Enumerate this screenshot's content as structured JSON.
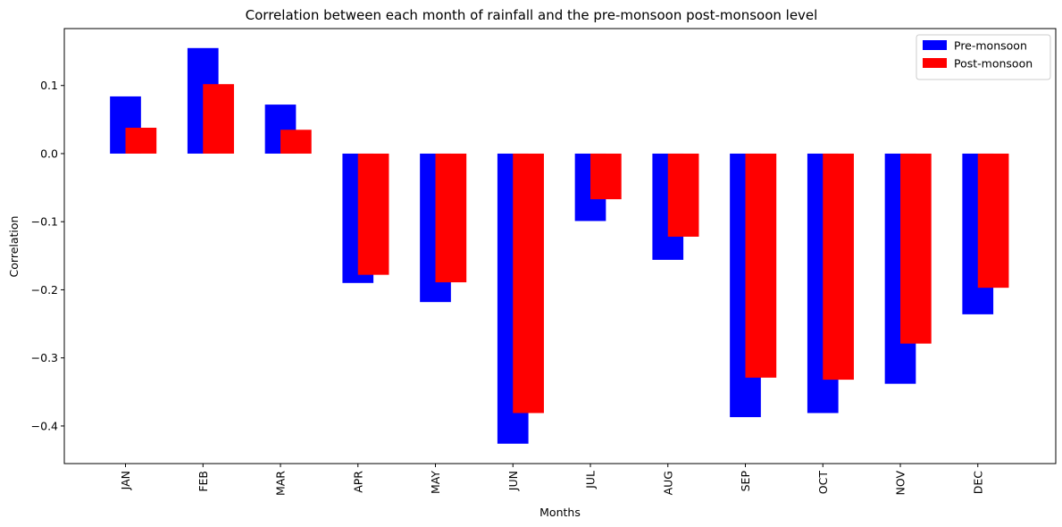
{
  "chart_data": {
    "type": "bar",
    "title": "Correlation between each month of rainfall and the pre-monsoon post-monsoon level",
    "xlabel": "Months",
    "ylabel": "Correlation",
    "categories": [
      "JAN",
      "FEB",
      "MAR",
      "APR",
      "MAY",
      "JUN",
      "JUL",
      "AUG",
      "SEP",
      "OCT",
      "NOV",
      "DEC"
    ],
    "series": [
      {
        "name": "Pre-monsoon",
        "color": "#0000ff",
        "values": [
          0.084,
          0.155,
          0.072,
          -0.19,
          -0.218,
          -0.426,
          -0.099,
          -0.156,
          -0.387,
          -0.381,
          -0.338,
          -0.236
        ]
      },
      {
        "name": "Post-monsoon",
        "color": "#ff0000",
        "values": [
          0.038,
          0.102,
          0.035,
          -0.178,
          -0.189,
          -0.381,
          -0.067,
          -0.122,
          -0.329,
          -0.332,
          -0.279,
          -0.197
        ]
      }
    ],
    "yticks": [
      -0.4,
      -0.3,
      -0.2,
      -0.1,
      0.0,
      0.1
    ],
    "ytick_labels": [
      "−0.4",
      "−0.3",
      "−0.2",
      "−0.1",
      "0.0",
      "0.1"
    ],
    "ylim": [
      -0.4552,
      0.1836
    ],
    "legend_position": "top-right",
    "grid": false
  }
}
